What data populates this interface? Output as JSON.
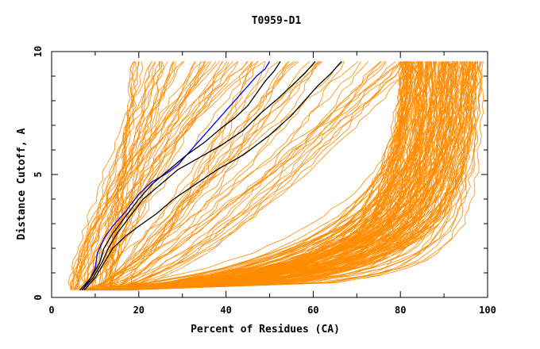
{
  "chart_data": {
    "type": "line",
    "title": "T0959-D1",
    "xlabel": "Percent of Residues (CA)",
    "ylabel": "Distance Cutoff, A",
    "xlim": [
      0,
      100
    ],
    "ylim": [
      0,
      10
    ],
    "x_ticks": [
      0,
      20,
      40,
      60,
      80,
      100
    ],
    "y_ticks": [
      0,
      5,
      10
    ],
    "x_tick_labels": [
      "0",
      "20",
      "40",
      "60",
      "80",
      "100"
    ],
    "y_tick_labels": [
      "0",
      "5",
      "10"
    ],
    "grid": false,
    "legend": "none",
    "background_curve_color": "#ff8c00",
    "highlight_colors": {
      "blue": "#0000ff",
      "black": "#000000"
    },
    "highlighted_series": [
      {
        "color": "#0000ff",
        "x": [
          7,
          9,
          10,
          10.5,
          12,
          14,
          17,
          20,
          23,
          26,
          29,
          32,
          35,
          38,
          41,
          43,
          45,
          47,
          49,
          50
        ],
        "y": [
          0.3,
          0.8,
          1.2,
          1.8,
          2.4,
          2.9,
          3.5,
          4.2,
          4.7,
          5.0,
          5.4,
          6.0,
          6.6,
          7.2,
          7.8,
          8.2,
          8.6,
          9.0,
          9.3,
          9.6
        ]
      },
      {
        "color": "#000000",
        "x": [
          6.5,
          9,
          11,
          12,
          14,
          17,
          20,
          23,
          27,
          31,
          35,
          39,
          42,
          45,
          47,
          49,
          51,
          52.5
        ],
        "y": [
          0.3,
          0.8,
          1.4,
          2.0,
          2.6,
          3.3,
          4.0,
          4.6,
          5.2,
          5.8,
          6.3,
          6.9,
          7.3,
          7.8,
          8.3,
          8.8,
          9.2,
          9.6
        ]
      },
      {
        "color": "#000000",
        "x": [
          7,
          9.5,
          11.5,
          13,
          15,
          18,
          21,
          25,
          29,
          34,
          39,
          44,
          48,
          52,
          55,
          58,
          60.5
        ],
        "y": [
          0.3,
          0.8,
          1.4,
          2.0,
          2.6,
          3.3,
          4.0,
          4.6,
          5.2,
          5.7,
          6.2,
          6.8,
          7.5,
          8.1,
          8.6,
          9.1,
          9.6
        ]
      },
      {
        "color": "#000000",
        "x": [
          7.5,
          10,
          12,
          14,
          17,
          20,
          24,
          28,
          33,
          38,
          44,
          50,
          55,
          58,
          61,
          64,
          66.5
        ],
        "y": [
          0.3,
          0.8,
          1.4,
          2.0,
          2.5,
          2.9,
          3.4,
          4.0,
          4.6,
          5.2,
          5.8,
          6.6,
          7.4,
          8.0,
          8.6,
          9.1,
          9.6
        ]
      }
    ]
  }
}
